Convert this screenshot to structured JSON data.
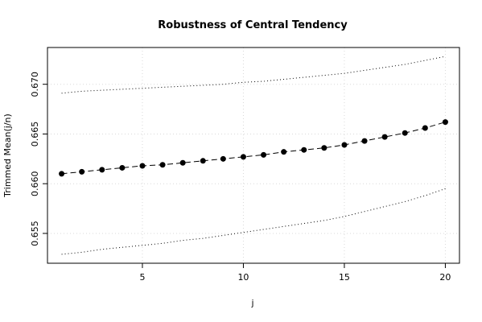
{
  "chart_data": {
    "type": "line",
    "title": "Robustness of Central Tendency",
    "xlabel": "j",
    "ylabel": "Trimmed Mean(j/n)",
    "xlim": [
      0.3,
      20.7
    ],
    "ylim": [
      0.652,
      0.6737
    ],
    "x_ticks": [
      5,
      10,
      15,
      20
    ],
    "x_tick_labels": [
      "5",
      "10",
      "15",
      "20"
    ],
    "y_ticks": [
      0.655,
      0.66,
      0.665,
      0.67
    ],
    "y_tick_labels": [
      "0.655",
      "0.660",
      "0.665",
      "0.670"
    ],
    "grid": true,
    "x": [
      1,
      2,
      3,
      4,
      5,
      6,
      7,
      8,
      9,
      10,
      11,
      12,
      13,
      14,
      15,
      16,
      17,
      18,
      19,
      20
    ],
    "series": [
      {
        "role": "mean",
        "style": "dashed-with-points",
        "values": [
          0.661,
          0.6612,
          0.6614,
          0.6616,
          0.6618,
          0.6619,
          0.6621,
          0.6623,
          0.6625,
          0.6627,
          0.6629,
          0.6632,
          0.6634,
          0.6636,
          0.6639,
          0.6643,
          0.6647,
          0.6651,
          0.6656,
          0.6662
        ]
      },
      {
        "role": "upper-bound",
        "style": "dotted",
        "values": [
          0.6691,
          0.6693,
          0.6694,
          0.6695,
          0.6696,
          0.6697,
          0.6698,
          0.6699,
          0.67,
          0.6702,
          0.6703,
          0.6705,
          0.6707,
          0.6709,
          0.6711,
          0.6714,
          0.6717,
          0.672,
          0.6724,
          0.6728
        ]
      },
      {
        "role": "lower-bound",
        "style": "dotted",
        "values": [
          0.6529,
          0.6531,
          0.6534,
          0.6536,
          0.6538,
          0.654,
          0.6543,
          0.6545,
          0.6548,
          0.6551,
          0.6554,
          0.6557,
          0.656,
          0.6563,
          0.6567,
          0.6572,
          0.6577,
          0.6582,
          0.6588,
          0.6595
        ]
      }
    ]
  }
}
